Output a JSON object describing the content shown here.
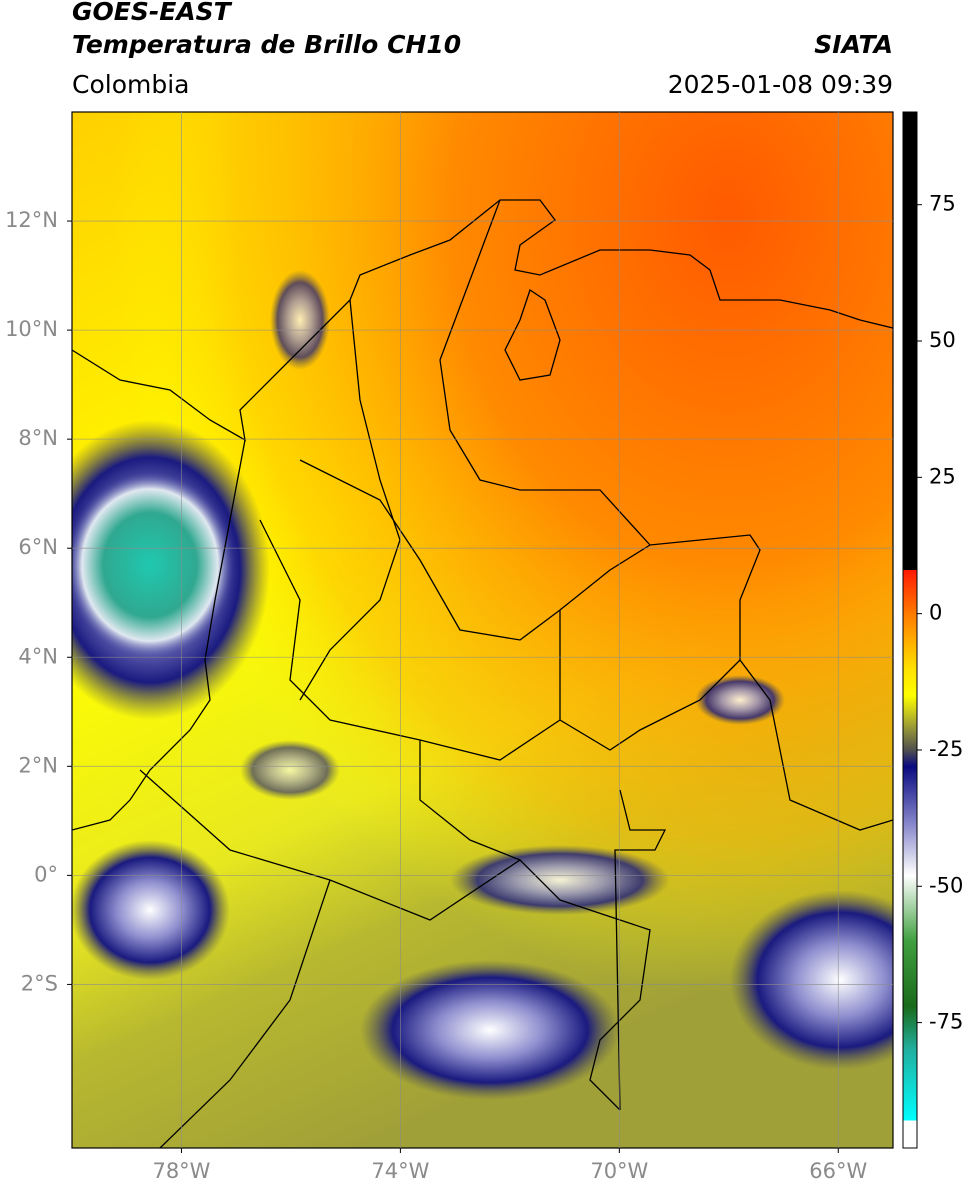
{
  "chart_data": {
    "type": "map",
    "title": "GOES-EAST",
    "subtitle": "Temperatura de Brillo CH10",
    "region": "Colombia",
    "source": "SIATA",
    "date": "2025-01-08 09:39",
    "xlim": [
      -80,
      -65
    ],
    "ylim": [
      -5,
      14
    ],
    "xticks": [
      {
        "value": -78,
        "label": "78°W"
      },
      {
        "value": -74,
        "label": "74°W"
      },
      {
        "value": -70,
        "label": "70°W"
      },
      {
        "value": -66,
        "label": "66°W"
      }
    ],
    "yticks": [
      {
        "value": -2,
        "label": "2°S"
      },
      {
        "value": 0,
        "label": "0°"
      },
      {
        "value": 2,
        "label": "2°N"
      },
      {
        "value": 4,
        "label": "4°N"
      },
      {
        "value": 6,
        "label": "6°N"
      },
      {
        "value": 8,
        "label": "8°N"
      },
      {
        "value": 10,
        "label": "10°N"
      },
      {
        "value": 12,
        "label": "12°N"
      }
    ],
    "grid": true,
    "colorbar": {
      "lim": [
        -98,
        92
      ],
      "ticks": [
        75,
        50,
        25,
        0,
        -25,
        -50,
        -75
      ],
      "stops": [
        {
          "value": 92,
          "color": "#000000"
        },
        {
          "value": 8,
          "color": "#000000"
        },
        {
          "value": 8,
          "color": "#ff1a00"
        },
        {
          "value": 0,
          "color": "#ff7a00"
        },
        {
          "value": -10,
          "color": "#ffe000"
        },
        {
          "value": -15,
          "color": "#ffff00"
        },
        {
          "value": -20,
          "color": "#a8a830"
        },
        {
          "value": -25,
          "color": "#505050"
        },
        {
          "value": -28,
          "color": "#0a0a80"
        },
        {
          "value": -38,
          "color": "#8080c8"
        },
        {
          "value": -48,
          "color": "#ffffff"
        },
        {
          "value": -60,
          "color": "#40a040"
        },
        {
          "value": -72,
          "color": "#1a6a1a"
        },
        {
          "value": -80,
          "color": "#20b0a0"
        },
        {
          "value": -93,
          "color": "#00ffff"
        },
        {
          "value": -93,
          "color": "#ffffff"
        },
        {
          "value": -98,
          "color": "#ffffff"
        }
      ]
    }
  }
}
